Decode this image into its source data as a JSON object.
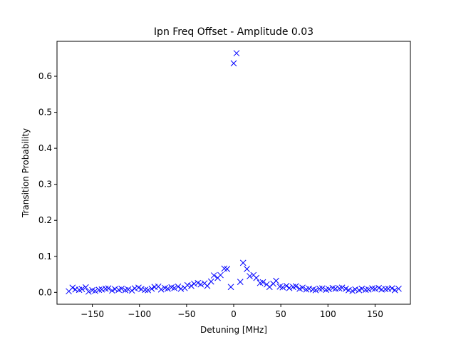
{
  "chart_data": {
    "type": "scatter",
    "title": "Ipn Freq Offset - Amplitude 0.03",
    "xlabel": "Detuning [MHz]",
    "ylabel": "Transition Probability",
    "xlim": [
      -187.5,
      187.5
    ],
    "ylim": [
      -0.033,
      0.697
    ],
    "xticks": [
      -150,
      -100,
      -50,
      0,
      50,
      100,
      150
    ],
    "xtick_labels": [
      "−150",
      "−100",
      "−50",
      "0",
      "50",
      "100",
      "150"
    ],
    "yticks": [
      0.0,
      0.1,
      0.2,
      0.3,
      0.4,
      0.5,
      0.6
    ],
    "ytick_labels": [
      "0.0",
      "0.1",
      "0.2",
      "0.3",
      "0.4",
      "0.5",
      "0.6"
    ],
    "grid": false,
    "legend": "none",
    "marker": "x",
    "color": "#0000ff",
    "series": [
      {
        "x": [
          -175,
          -171,
          -168,
          -164,
          -161,
          -157,
          -154,
          -150,
          -147,
          -143,
          -140,
          -136,
          -133,
          -129,
          -126,
          -122,
          -119,
          -115,
          -112,
          -108,
          -105,
          -101,
          -98,
          -94,
          -91,
          -87,
          -84,
          -80,
          -77,
          -73,
          -70,
          -66,
          -63,
          -59,
          -56,
          -52,
          -49,
          -45,
          -42,
          -38,
          -35,
          -31,
          -28,
          -24,
          -21,
          -17,
          -14,
          -10,
          -7,
          -3,
          0,
          3,
          7,
          10,
          14,
          17,
          21,
          24,
          28,
          31,
          35,
          38,
          42,
          45,
          49,
          52,
          56,
          59,
          63,
          66,
          70,
          73,
          77,
          80,
          84,
          87,
          91,
          94,
          98,
          101,
          105,
          108,
          112,
          115,
          119,
          122,
          126,
          129,
          133,
          136,
          140,
          143,
          147,
          150,
          154,
          157,
          161,
          164,
          168,
          171,
          175
        ],
        "y": [
          0.003,
          0.013,
          0.008,
          0.007,
          0.009,
          0.014,
          0.002,
          0.006,
          0.004,
          0.007,
          0.008,
          0.01,
          0.011,
          0.005,
          0.009,
          0.007,
          0.01,
          0.006,
          0.008,
          0.005,
          0.011,
          0.013,
          0.009,
          0.007,
          0.006,
          0.01,
          0.015,
          0.016,
          0.008,
          0.012,
          0.01,
          0.014,
          0.012,
          0.016,
          0.01,
          0.012,
          0.02,
          0.018,
          0.024,
          0.026,
          0.022,
          0.025,
          0.018,
          0.03,
          0.047,
          0.04,
          0.048,
          0.066,
          0.065,
          0.015,
          0.636,
          0.664,
          0.029,
          0.082,
          0.065,
          0.045,
          0.048,
          0.04,
          0.026,
          0.028,
          0.022,
          0.015,
          0.024,
          0.032,
          0.016,
          0.014,
          0.018,
          0.012,
          0.015,
          0.017,
          0.01,
          0.013,
          0.008,
          0.01,
          0.008,
          0.006,
          0.01,
          0.011,
          0.007,
          0.009,
          0.012,
          0.01,
          0.011,
          0.013,
          0.01,
          0.006,
          0.004,
          0.008,
          0.006,
          0.01,
          0.007,
          0.008,
          0.011,
          0.01,
          0.012,
          0.008,
          0.009,
          0.01,
          0.011,
          0.006,
          0.01
        ]
      }
    ]
  }
}
